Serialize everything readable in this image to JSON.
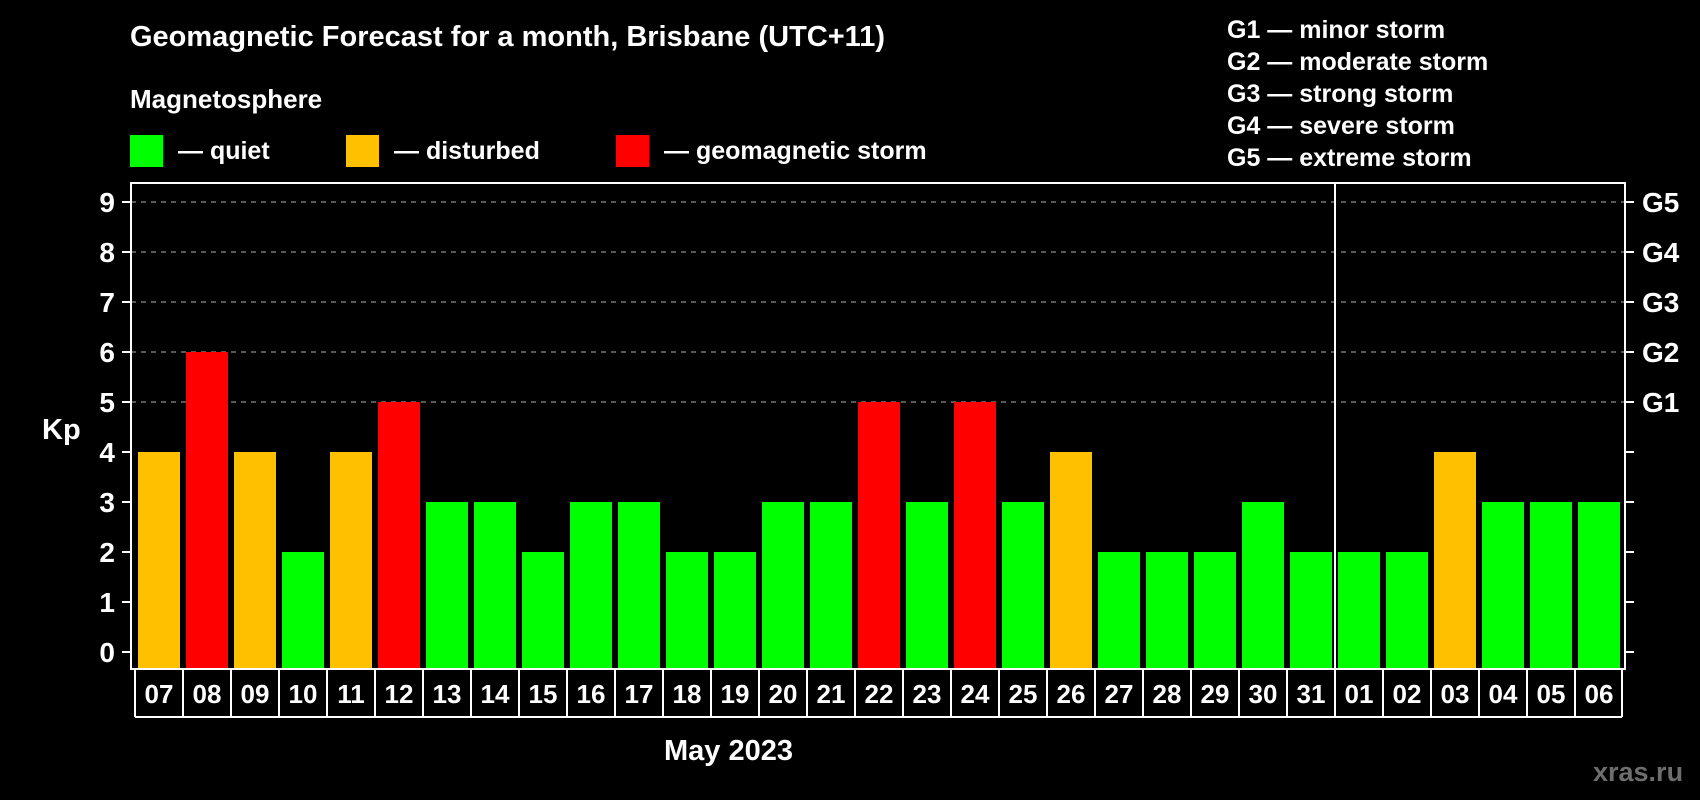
{
  "title": "Geomagnetic Forecast for a month, Brisbane (UTC+11)",
  "subtitle": "Magnetosphere",
  "legend": [
    {
      "key": "quiet",
      "label": "— quiet",
      "color": "#00ff00",
      "x": 130
    },
    {
      "key": "disturbed",
      "label": "— disturbed",
      "color": "#ffc000",
      "x": 346
    },
    {
      "key": "storm",
      "label": "— geomagnetic storm",
      "color": "#ff0000",
      "x": 616
    }
  ],
  "storm_scale": [
    "G1 — minor storm",
    "G2 — moderate storm",
    "G3 — strong storm",
    "G4 — severe storm",
    "G5 — extreme storm"
  ],
  "xlabel": "May 2023",
  "ylabel": "Kp",
  "watermark": "xras.ru",
  "colors": {
    "quiet": "#00ff00",
    "disturbed": "#ffc000",
    "storm": "#ff0000",
    "grid": "#8c8c8c",
    "axis": "#ffffff",
    "background": "#000000"
  },
  "chart_data": {
    "type": "bar",
    "title": "Geomagnetic Forecast for a month, Brisbane (UTC+11)",
    "xlabel": "May 2023",
    "ylabel": "Kp",
    "ylim": [
      0,
      9
    ],
    "yticks": [
      0,
      1,
      2,
      3,
      4,
      5,
      6,
      7,
      8,
      9
    ],
    "right_axis_labels": [
      {
        "kp": 5,
        "label": "G1"
      },
      {
        "kp": 6,
        "label": "G2"
      },
      {
        "kp": 7,
        "label": "G3"
      },
      {
        "kp": 8,
        "label": "G4"
      },
      {
        "kp": 9,
        "label": "G5"
      }
    ],
    "grid": "dashed horizontal at Kp 5-9",
    "month_divider_after": "31",
    "categories": [
      "07",
      "08",
      "09",
      "10",
      "11",
      "12",
      "13",
      "14",
      "15",
      "16",
      "17",
      "18",
      "19",
      "20",
      "21",
      "22",
      "23",
      "24",
      "25",
      "26",
      "27",
      "28",
      "29",
      "30",
      "31",
      "01",
      "02",
      "03",
      "04",
      "05",
      "06"
    ],
    "values": [
      4,
      6,
      4,
      2,
      4,
      5,
      3,
      3,
      2,
      3,
      3,
      2,
      2,
      3,
      3,
      5,
      3,
      5,
      3,
      4,
      2,
      2,
      2,
      3,
      2,
      2,
      2,
      4,
      3,
      3,
      3
    ],
    "status": [
      "disturbed",
      "storm",
      "disturbed",
      "quiet",
      "disturbed",
      "storm",
      "quiet",
      "quiet",
      "quiet",
      "quiet",
      "quiet",
      "quiet",
      "quiet",
      "quiet",
      "quiet",
      "storm",
      "quiet",
      "storm",
      "quiet",
      "disturbed",
      "quiet",
      "quiet",
      "quiet",
      "quiet",
      "quiet",
      "quiet",
      "quiet",
      "disturbed",
      "quiet",
      "quiet",
      "quiet"
    ],
    "legend": [
      {
        "label": "quiet",
        "color": "#00ff00"
      },
      {
        "label": "disturbed",
        "color": "#ffc000"
      },
      {
        "label": "geomagnetic storm",
        "color": "#ff0000"
      }
    ]
  }
}
